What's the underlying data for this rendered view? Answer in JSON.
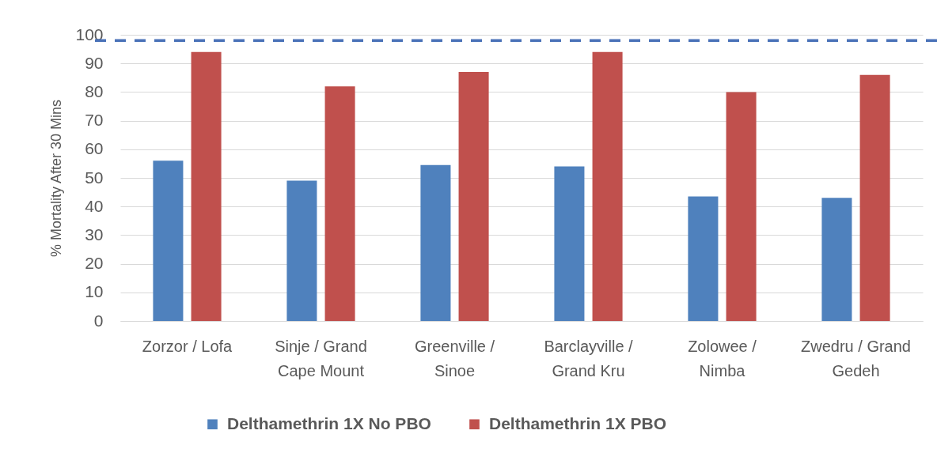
{
  "chart_data": {
    "type": "bar",
    "ylabel": "% Mortality After 30 Mins",
    "categories": [
      "Zorzor / Lofa",
      "Sinje / Grand Cape Mount",
      "Greenville / Sinoe",
      "Barclayville / Grand Kru",
      "Zolowee / Nimba",
      "Zwedru / Grand Gedeh"
    ],
    "series": [
      {
        "name": "Delthamethrin 1X No PBO",
        "color": "#4f81bd",
        "values": [
          56,
          49,
          54.5,
          54,
          43.5,
          43
        ]
      },
      {
        "name": "Delthamethrin 1X PBO",
        "color": "#c0504d",
        "values": [
          94,
          82,
          87,
          94,
          80,
          86
        ]
      }
    ],
    "ylim": [
      0,
      100
    ],
    "yticks": [
      0,
      10,
      20,
      30,
      40,
      50,
      60,
      70,
      80,
      90,
      100
    ],
    "grid": "y",
    "legend": "bottom",
    "ref_lines": [
      {
        "axis": "y",
        "value": 98,
        "color": "#4a72b8",
        "line_style": "dashed"
      }
    ]
  }
}
